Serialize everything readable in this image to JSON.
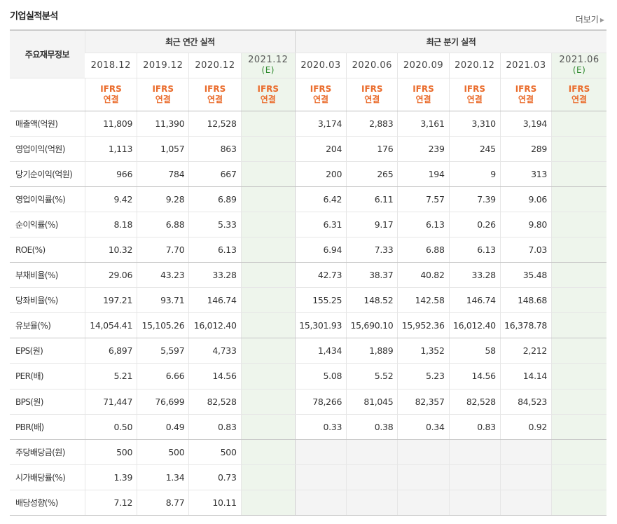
{
  "section_title": "기업실적분석",
  "more_label": "더보기",
  "more_arrow": "▶",
  "header": {
    "row_label": "주요재무정보",
    "annual_group": "최근 연간 실적",
    "quarter_group": "최근 분기 실적",
    "annual_periods": [
      "2018.12",
      "2019.12",
      "2020.12",
      "2021.12"
    ],
    "quarter_periods": [
      "2020.03",
      "2020.06",
      "2020.09",
      "2020.12",
      "2021.03",
      "2021.06"
    ],
    "estimate_mark": "(E)",
    "basis_line1": "IFRS",
    "basis_line2": "연결"
  },
  "rows": [
    {
      "label": "매출액(억원)",
      "annual": [
        "11,809",
        "11,390",
        "12,528",
        ""
      ],
      "quarter": [
        "3,174",
        "2,883",
        "3,161",
        "3,310",
        "3,194",
        ""
      ]
    },
    {
      "label": "영업이익(억원)",
      "annual": [
        "1,113",
        "1,057",
        "863",
        ""
      ],
      "quarter": [
        "204",
        "176",
        "239",
        "245",
        "289",
        ""
      ]
    },
    {
      "label": "당기순이익(억원)",
      "annual": [
        "966",
        "784",
        "667",
        ""
      ],
      "quarter": [
        "200",
        "265",
        "194",
        "9",
        "313",
        ""
      ]
    },
    {
      "label": "영업이익률(%)",
      "annual": [
        "9.42",
        "9.28",
        "6.89",
        ""
      ],
      "quarter": [
        "6.42",
        "6.11",
        "7.57",
        "7.39",
        "9.06",
        ""
      ]
    },
    {
      "label": "순이익률(%)",
      "annual": [
        "8.18",
        "6.88",
        "5.33",
        ""
      ],
      "quarter": [
        "6.31",
        "9.17",
        "6.13",
        "0.26",
        "9.80",
        ""
      ]
    },
    {
      "label": "ROE(%)",
      "annual": [
        "10.32",
        "7.70",
        "6.13",
        ""
      ],
      "quarter": [
        "6.94",
        "7.33",
        "6.88",
        "6.13",
        "7.03",
        ""
      ]
    },
    {
      "label": "부채비율(%)",
      "annual": [
        "29.06",
        "43.23",
        "33.28",
        ""
      ],
      "quarter": [
        "42.73",
        "38.37",
        "40.82",
        "33.28",
        "35.48",
        ""
      ]
    },
    {
      "label": "당좌비율(%)",
      "annual": [
        "197.21",
        "93.71",
        "146.74",
        ""
      ],
      "quarter": [
        "155.25",
        "148.52",
        "142.58",
        "146.74",
        "148.68",
        ""
      ]
    },
    {
      "label": "유보율(%)",
      "annual": [
        "14,054.41",
        "15,105.26",
        "16,012.40",
        ""
      ],
      "quarter": [
        "15,301.93",
        "15,690.10",
        "15,952.36",
        "16,012.40",
        "16,378.78",
        ""
      ]
    },
    {
      "label": "EPS(원)",
      "annual": [
        "6,897",
        "5,597",
        "4,733",
        ""
      ],
      "quarter": [
        "1,434",
        "1,889",
        "1,352",
        "58",
        "2,212",
        ""
      ]
    },
    {
      "label": "PER(배)",
      "annual": [
        "5.21",
        "6.66",
        "14.56",
        ""
      ],
      "quarter": [
        "5.08",
        "5.52",
        "5.23",
        "14.56",
        "14.14",
        ""
      ]
    },
    {
      "label": "BPS(원)",
      "annual": [
        "71,447",
        "76,699",
        "82,528",
        ""
      ],
      "quarter": [
        "78,266",
        "81,045",
        "82,357",
        "82,528",
        "84,523",
        ""
      ]
    },
    {
      "label": "PBR(배)",
      "annual": [
        "0.50",
        "0.49",
        "0.83",
        ""
      ],
      "quarter": [
        "0.33",
        "0.38",
        "0.34",
        "0.83",
        "0.92",
        ""
      ]
    },
    {
      "label": "주당배당금(원)",
      "annual": [
        "500",
        "500",
        "500",
        ""
      ],
      "quarter": [
        "",
        "",
        "",
        "",
        "",
        ""
      ]
    },
    {
      "label": "시가배당률(%)",
      "annual": [
        "1.39",
        "1.34",
        "0.73",
        ""
      ],
      "quarter": [
        "",
        "",
        "",
        "",
        "",
        ""
      ]
    },
    {
      "label": "배당성향(%)",
      "annual": [
        "7.12",
        "8.77",
        "10.11",
        ""
      ],
      "quarter": [
        "",
        "",
        "",
        "",
        "",
        ""
      ]
    }
  ],
  "colors": {
    "ifrs_text": "#ea6c2c",
    "estimate_bg": "#eef5ec",
    "estimate_mark": "#2f8a2f",
    "header_bg": "#f4f4f4"
  }
}
